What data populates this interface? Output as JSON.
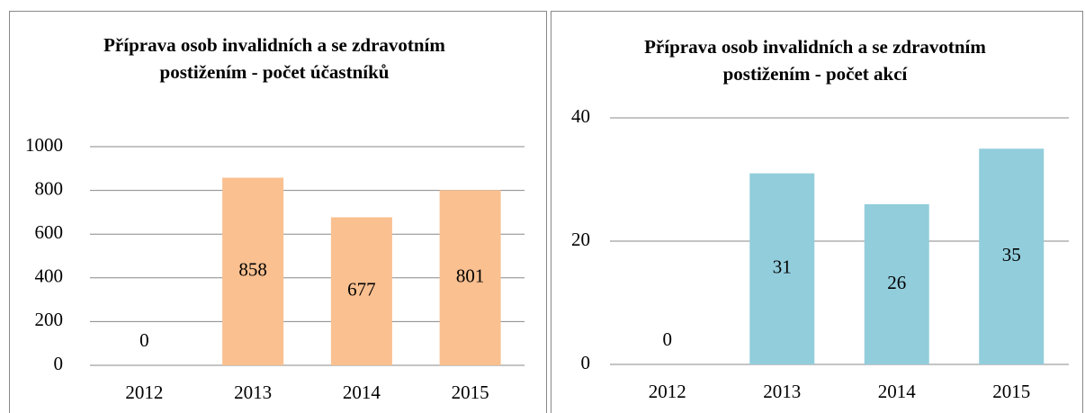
{
  "chart_data": [
    {
      "type": "bar",
      "title": "Příprava osob invalidních a se zdravotním postižením - počet účastníků",
      "categories": [
        "2012",
        "2013",
        "2014",
        "2015"
      ],
      "values": [
        0,
        858,
        677,
        801
      ],
      "color": "#fac090",
      "ylim": [
        0,
        1000
      ],
      "yticks": [
        0,
        200,
        400,
        600,
        800,
        1000
      ],
      "grid": true
    },
    {
      "type": "bar",
      "title": "Příprava osob invalidních a se zdravotním postižením - počet akcí",
      "categories": [
        "2012",
        "2013",
        "2014",
        "2015"
      ],
      "values": [
        0,
        31,
        26,
        35
      ],
      "color": "#92cddc",
      "ylim": [
        0,
        40
      ],
      "yticks": [
        0,
        20,
        40
      ],
      "grid": true
    }
  ]
}
